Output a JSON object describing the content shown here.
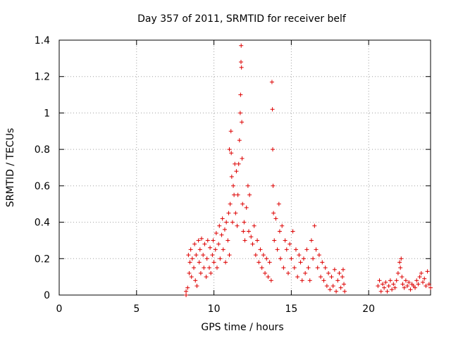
{
  "chart_data": {
    "type": "scatter",
    "title": "Day 357 of 2011, SRMTID for receiver belf",
    "xlabel": "GPS time / hours",
    "ylabel": "SRMTID / TECUs",
    "xlim": [
      0,
      24
    ],
    "ylim": [
      0,
      1.4
    ],
    "xticks": [
      0,
      5,
      10,
      15,
      20
    ],
    "xtick_labels": [
      "0",
      "5",
      "10",
      "15",
      "20"
    ],
    "yticks": [
      0,
      0.2,
      0.4,
      0.6,
      0.8,
      1.0,
      1.2,
      1.4
    ],
    "ytick_labels": [
      "0",
      "0.2",
      "0.4",
      "0.6",
      "0.8",
      "1",
      "1.2",
      "1.4"
    ],
    "grid": true,
    "marker": "plus",
    "color": "#dd0000",
    "series": [
      {
        "name": "SRMTID",
        "points": [
          [
            8.2,
            0.0
          ],
          [
            8.2,
            0.02
          ],
          [
            8.3,
            0.04
          ],
          [
            8.35,
            0.22
          ],
          [
            8.4,
            0.12
          ],
          [
            8.45,
            0.18
          ],
          [
            8.5,
            0.25
          ],
          [
            8.55,
            0.1
          ],
          [
            8.6,
            0.2
          ],
          [
            8.7,
            0.15
          ],
          [
            8.75,
            0.28
          ],
          [
            8.8,
            0.08
          ],
          [
            8.85,
            0.22
          ],
          [
            8.9,
            0.05
          ],
          [
            9.0,
            0.3
          ],
          [
            9.05,
            0.18
          ],
          [
            9.1,
            0.25
          ],
          [
            9.15,
            0.12
          ],
          [
            9.2,
            0.31
          ],
          [
            9.3,
            0.22
          ],
          [
            9.35,
            0.15
          ],
          [
            9.4,
            0.28
          ],
          [
            9.5,
            0.1
          ],
          [
            9.55,
            0.2
          ],
          [
            9.6,
            0.3
          ],
          [
            9.7,
            0.15
          ],
          [
            9.75,
            0.26
          ],
          [
            9.8,
            0.12
          ],
          [
            9.9,
            0.22
          ],
          [
            9.95,
            0.3
          ],
          [
            10.0,
            0.18
          ],
          [
            10.1,
            0.25
          ],
          [
            10.15,
            0.34
          ],
          [
            10.2,
            0.15
          ],
          [
            10.3,
            0.28
          ],
          [
            10.35,
            0.38
          ],
          [
            10.4,
            0.2
          ],
          [
            10.5,
            0.33
          ],
          [
            10.55,
            0.42
          ],
          [
            10.6,
            0.25
          ],
          [
            10.7,
            0.36
          ],
          [
            10.75,
            0.18
          ],
          [
            10.8,
            0.4
          ],
          [
            10.9,
            0.3
          ],
          [
            10.95,
            0.45
          ],
          [
            11.0,
            0.22
          ],
          [
            11.0,
            0.8
          ],
          [
            11.05,
            0.5
          ],
          [
            11.1,
            0.9
          ],
          [
            11.12,
            0.78
          ],
          [
            11.15,
            0.65
          ],
          [
            11.2,
            0.4
          ],
          [
            11.25,
            0.6
          ],
          [
            11.3,
            0.55
          ],
          [
            11.35,
            0.72
          ],
          [
            11.4,
            0.45
          ],
          [
            11.45,
            0.68
          ],
          [
            11.5,
            0.38
          ],
          [
            11.55,
            0.55
          ],
          [
            11.6,
            0.72
          ],
          [
            11.65,
            0.85
          ],
          [
            11.7,
            1.0
          ],
          [
            11.72,
            1.1
          ],
          [
            11.75,
            1.28
          ],
          [
            11.76,
            1.37
          ],
          [
            11.78,
            1.25
          ],
          [
            11.8,
            0.95
          ],
          [
            11.82,
            0.75
          ],
          [
            11.85,
            0.5
          ],
          [
            11.9,
            0.35
          ],
          [
            11.95,
            0.4
          ],
          [
            12.0,
            0.3
          ],
          [
            12.1,
            0.48
          ],
          [
            12.2,
            0.6
          ],
          [
            12.25,
            0.35
          ],
          [
            12.3,
            0.55
          ],
          [
            12.4,
            0.32
          ],
          [
            12.5,
            0.28
          ],
          [
            12.6,
            0.38
          ],
          [
            12.7,
            0.22
          ],
          [
            12.8,
            0.3
          ],
          [
            12.9,
            0.18
          ],
          [
            13.0,
            0.25
          ],
          [
            13.1,
            0.15
          ],
          [
            13.2,
            0.22
          ],
          [
            13.3,
            0.12
          ],
          [
            13.4,
            0.2
          ],
          [
            13.5,
            0.1
          ],
          [
            13.6,
            0.18
          ],
          [
            13.7,
            0.08
          ],
          [
            13.75,
            1.17
          ],
          [
            13.78,
            1.02
          ],
          [
            13.8,
            0.8
          ],
          [
            13.82,
            0.6
          ],
          [
            13.85,
            0.45
          ],
          [
            13.9,
            0.3
          ],
          [
            14.0,
            0.42
          ],
          [
            14.1,
            0.25
          ],
          [
            14.2,
            0.5
          ],
          [
            14.25,
            0.35
          ],
          [
            14.3,
            0.2
          ],
          [
            14.4,
            0.38
          ],
          [
            14.5,
            0.15
          ],
          [
            14.6,
            0.3
          ],
          [
            14.7,
            0.25
          ],
          [
            14.8,
            0.12
          ],
          [
            14.9,
            0.28
          ],
          [
            15.0,
            0.2
          ],
          [
            15.1,
            0.35
          ],
          [
            15.2,
            0.15
          ],
          [
            15.3,
            0.25
          ],
          [
            15.4,
            0.1
          ],
          [
            15.5,
            0.22
          ],
          [
            15.6,
            0.18
          ],
          [
            15.7,
            0.08
          ],
          [
            15.8,
            0.2
          ],
          [
            15.9,
            0.12
          ],
          [
            16.0,
            0.25
          ],
          [
            16.1,
            0.15
          ],
          [
            16.2,
            0.08
          ],
          [
            16.3,
            0.3
          ],
          [
            16.4,
            0.2
          ],
          [
            16.5,
            0.38
          ],
          [
            16.6,
            0.25
          ],
          [
            16.7,
            0.15
          ],
          [
            16.8,
            0.22
          ],
          [
            16.9,
            0.1
          ],
          [
            17.0,
            0.18
          ],
          [
            17.1,
            0.08
          ],
          [
            17.2,
            0.15
          ],
          [
            17.3,
            0.05
          ],
          [
            17.4,
            0.12
          ],
          [
            17.5,
            0.03
          ],
          [
            17.6,
            0.1
          ],
          [
            17.7,
            0.05
          ],
          [
            17.8,
            0.14
          ],
          [
            17.9,
            0.02
          ],
          [
            18.0,
            0.08
          ],
          [
            18.1,
            0.12
          ],
          [
            18.2,
            0.04
          ],
          [
            18.3,
            0.1
          ],
          [
            18.35,
            0.14
          ],
          [
            18.4,
            0.06
          ],
          [
            18.45,
            0.02
          ],
          [
            20.6,
            0.05
          ],
          [
            20.7,
            0.08
          ],
          [
            20.8,
            0.02
          ],
          [
            20.9,
            0.06
          ],
          [
            21.0,
            0.04
          ],
          [
            21.1,
            0.07
          ],
          [
            21.2,
            0.02
          ],
          [
            21.3,
            0.05
          ],
          [
            21.4,
            0.08
          ],
          [
            21.5,
            0.03
          ],
          [
            21.6,
            0.06
          ],
          [
            21.7,
            0.04
          ],
          [
            21.8,
            0.08
          ],
          [
            21.9,
            0.12
          ],
          [
            22.0,
            0.18
          ],
          [
            22.05,
            0.15
          ],
          [
            22.1,
            0.2
          ],
          [
            22.15,
            0.1
          ],
          [
            22.2,
            0.06
          ],
          [
            22.3,
            0.04
          ],
          [
            22.4,
            0.08
          ],
          [
            22.5,
            0.05
          ],
          [
            22.6,
            0.07
          ],
          [
            22.7,
            0.03
          ],
          [
            22.8,
            0.06
          ],
          [
            22.9,
            0.05
          ],
          [
            23.0,
            0.04
          ],
          [
            23.1,
            0.08
          ],
          [
            23.2,
            0.06
          ],
          [
            23.3,
            0.1
          ],
          [
            23.4,
            0.12
          ],
          [
            23.5,
            0.07
          ],
          [
            23.6,
            0.09
          ],
          [
            23.7,
            0.05
          ],
          [
            23.8,
            0.13
          ],
          [
            23.9,
            0.06
          ],
          [
            24.0,
            0.04
          ]
        ]
      }
    ]
  }
}
